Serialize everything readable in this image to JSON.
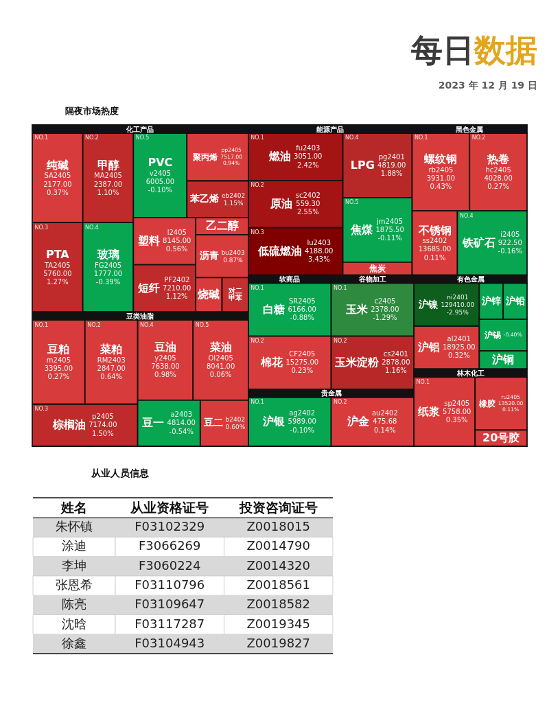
{
  "chart_data": [
    {
      "type": "other",
      "title": "每日数据",
      "subtitle": "2023 年 12 月 19 日"
    },
    {
      "type": "other",
      "title": "隔夜市场热度"
    },
    {
      "type": "other",
      "title": "化工产品",
      "categories": [
        "纯碱",
        "甲醇",
        "PTA",
        "玻璃",
        "PVC",
        "聚丙烯",
        "苯乙烯",
        "塑料",
        "短纤",
        "乙二醇",
        "沥青",
        "烧碱",
        "对二甲苯"
      ],
      "values": [
        0.37,
        1.1,
        1.27,
        -0.39,
        -0.1,
        0.94,
        1.15,
        0.56,
        1.12,
        null,
        0.87,
        null,
        null
      ],
      "value_labels": [
        "0.37%",
        "1.10%",
        "1.27%",
        "-0.39%",
        "-0.10%",
        "0.94%",
        "1.15%",
        "0.56%",
        "1.12%",
        null,
        "0.87%",
        null,
        null
      ],
      "colors": [
        "#d83b3b",
        "#bf2a2a",
        "#bf2a2a",
        "#08a651",
        "#08a651",
        "#d83b3b",
        "#bf2a2a",
        "#d83b3b",
        "#bf2a2a",
        "#d83b3b",
        "#d83b3b",
        "#d83b3b",
        "#c43030"
      ],
      "cell_labels": [
        [
          "NO.1",
          "SA2405",
          "2177.00"
        ],
        [
          "NO.2",
          "MA2405",
          "2387.00"
        ],
        [
          "NO.3",
          "TA2405",
          "5760.00"
        ],
        [
          "NO.4",
          "FG2405",
          "1777.00"
        ],
        [
          "NO.5",
          "v2405",
          "6005.00"
        ],
        [
          null,
          "pp2405",
          "7517.00"
        ],
        [
          null,
          "eb2402",
          null
        ],
        [
          null,
          "l2405",
          "8145.00"
        ],
        [
          null,
          "PF2402",
          "7210.00"
        ],
        [
          null,
          null,
          null
        ],
        [
          null,
          "bu2403",
          null
        ],
        [
          null,
          null,
          null
        ],
        [
          null,
          null,
          null
        ]
      ]
    },
    {
      "type": "other",
      "title": "豆类油脂",
      "categories": [
        "豆粕",
        "菜粕",
        "棕榈油",
        "豆油",
        "菜油",
        "豆一",
        "豆二"
      ],
      "values": [
        0.27,
        0.64,
        1.5,
        0.98,
        0.06,
        -0.54,
        0.6
      ],
      "value_labels": [
        "0.27%",
        "0.64%",
        "1.50%",
        "0.98%",
        "0.06%",
        "-0.54%",
        "0.60%"
      ],
      "colors": [
        "#d83b3b",
        "#d83b3b",
        "#bf2a2a",
        "#d83b3b",
        "#d83b3b",
        "#08a651",
        "#d83b3b"
      ],
      "cell_labels": [
        [
          "NO.1",
          "m2405",
          "3395.00"
        ],
        [
          "NO.2",
          "RM2403",
          "2847.00"
        ],
        [
          "NO.3",
          "p2405",
          "7174.00"
        ],
        [
          "NO.4",
          "y2405",
          "7638.00"
        ],
        [
          "NO.5",
          "OI2405",
          "8041.00"
        ],
        [
          null,
          "a2403",
          "4814.00"
        ],
        [
          null,
          "b2402",
          null
        ]
      ]
    },
    {
      "type": "other",
      "title": "能源产品",
      "categories": [
        "燃油",
        "原油",
        "低硫燃油",
        "LPG",
        "焦煤",
        "焦炭"
      ],
      "values": [
        2.42,
        2.55,
        3.43,
        1.88,
        -0.11,
        null
      ],
      "value_labels": [
        "2.42%",
        "2.55%",
        "3.43%",
        "1.88%",
        "-0.11%",
        null
      ],
      "colors": [
        "#a51414",
        "#a51414",
        "#800000",
        "#b72828",
        "#08a651",
        "#d83b3b"
      ],
      "cell_labels": [
        [
          "NO.1",
          "fu2403",
          "3051.00"
        ],
        [
          "NO.2",
          "sc2402",
          "559.30"
        ],
        [
          "NO.3",
          "lu2403",
          "4188.00"
        ],
        [
          "NO.4",
          "pg2401",
          "4819.00"
        ],
        [
          "NO.5",
          "jm2405",
          "1875.50"
        ],
        [
          null,
          null,
          null
        ]
      ]
    },
    {
      "type": "other",
      "title": "黑色金属",
      "categories": [
        "螺纹钢",
        "热卷",
        "不锈钢",
        "铁矿石"
      ],
      "values": [
        0.43,
        0.27,
        0.11,
        -0.16
      ],
      "value_labels": [
        "0.43%",
        "0.27%",
        "0.11%",
        "-0.16%"
      ],
      "colors": [
        "#d83b3b",
        "#d83b3b",
        "#d83b3b",
        "#08a651"
      ],
      "cell_labels": [
        [
          "NO.1",
          "rb2405",
          "3931.00"
        ],
        [
          "NO.2",
          "hc2405",
          "4028.00"
        ],
        [
          null,
          "ss2402",
          "13685.00"
        ],
        [
          "NO.4",
          "i2405",
          "922.50"
        ]
      ]
    },
    {
      "type": "other",
      "title": "软商品",
      "categories": [
        "白糖",
        "棉花"
      ],
      "values": [
        -0.88,
        0.23
      ],
      "value_labels": [
        "-0.88%",
        "0.23%"
      ],
      "colors": [
        "#08a651",
        "#d83b3b"
      ],
      "cell_labels": [
        [
          "NO.1",
          "SR2405",
          "6166.00"
        ],
        [
          "NO.2",
          "CF2405",
          "15275.00"
        ]
      ]
    },
    {
      "type": "other",
      "title": "谷物加工",
      "categories": [
        "玉米",
        "玉米淀粉"
      ],
      "values": [
        -1.29,
        1.16
      ],
      "value_labels": [
        "-1.29%",
        "1.16%"
      ],
      "colors": [
        "#2e8a3e",
        "#b92828"
      ],
      "cell_labels": [
        [
          "NO.1",
          "c2405",
          "2378.00"
        ],
        [
          "NO.2",
          "cs2401",
          "2878.00"
        ]
      ]
    },
    {
      "type": "other",
      "title": "贵金属",
      "categories": [
        "沪银",
        "沪金"
      ],
      "values": [
        -0.1,
        0.14
      ],
      "value_labels": [
        "-0.10%",
        "0.14%"
      ],
      "colors": [
        "#08a651",
        "#d83b3b"
      ],
      "cell_labels": [
        [
          "NO.1",
          "ag2402",
          "5989.00"
        ],
        [
          "NO.2",
          "au2402",
          "475.68"
        ]
      ]
    },
    {
      "type": "other",
      "title": "有色金属",
      "categories": [
        "沪镍",
        "沪铝",
        "沪锌",
        "沪铅",
        "沪锡",
        "沪铜"
      ],
      "values": [
        -2.95,
        0.32,
        null,
        null,
        -0.4,
        null
      ],
      "value_labels": [
        "-2.95%",
        "0.32%",
        null,
        null,
        "-0.40%",
        null
      ],
      "colors": [
        "#0e5e1e",
        "#d83b3b",
        "#08a651",
        "#08a651",
        "#08a651",
        "#08a651"
      ],
      "cell_labels": [
        [
          null,
          "ni2401",
          "129410.00"
        ],
        [
          null,
          "al2401",
          "18925.00"
        ],
        [
          null,
          null,
          null
        ],
        [
          null,
          null,
          null
        ],
        [
          null,
          null,
          null
        ],
        [
          null,
          null,
          null
        ]
      ]
    },
    {
      "type": "other",
      "title": "林木化工",
      "categories": [
        "纸浆",
        "橡胶",
        "20号胶"
      ],
      "values": [
        0.35,
        0.11,
        null
      ],
      "value_labels": [
        "0.35%",
        "0.11%",
        null
      ],
      "colors": [
        "#d83b3b",
        "#d83b3b",
        "#d83b3b"
      ],
      "cell_labels": [
        [
          "NO.1",
          "sp2405",
          "5758.00"
        ],
        [
          null,
          "ru2405",
          "13520.00"
        ],
        [
          null,
          null,
          null
        ]
      ]
    },
    {
      "type": "other",
      "title": "从业人员信息",
      "ylabel": "姓名",
      "categories": [
        "从业资格证号",
        "投资咨询证号"
      ],
      "y_categories": [
        "朱怀镇",
        "涂迪",
        "李坤",
        "张恩希",
        "陈亮",
        "沈晗",
        "徐鑫"
      ],
      "cell_labels": [
        [
          "F03102329",
          "Z0018015"
        ],
        [
          "F3066269",
          "Z0014790"
        ],
        [
          "F3060224",
          "Z0014320"
        ],
        [
          "F03110796",
          "Z0018561"
        ],
        [
          "F03109647",
          "Z0018582"
        ],
        [
          "F03117287",
          "Z0019345"
        ],
        [
          "F03104943",
          "Z0019827"
        ]
      ]
    }
  ]
}
